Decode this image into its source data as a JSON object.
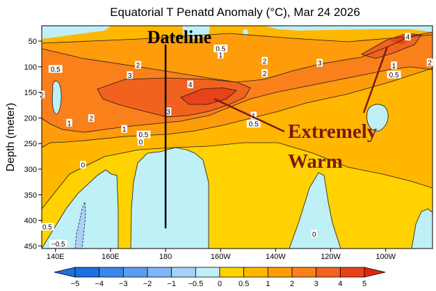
{
  "chart_data": {
    "type": "heatmap",
    "title": "Equatorial T Penatd Anomaly (°C), Mar 24 2026",
    "ylabel": "Depth (meter)",
    "xlabel": "",
    "xlim_deg_east": [
      135,
      277
    ],
    "ylim_depth_m": [
      20,
      455
    ],
    "y_inverted": true,
    "x_ticks": [
      {
        "value": 140,
        "label": "140E"
      },
      {
        "value": 160,
        "label": "160E"
      },
      {
        "value": 180,
        "label": "180"
      },
      {
        "value": 200,
        "label": "160W"
      },
      {
        "value": 220,
        "label": "140W"
      },
      {
        "value": 240,
        "label": "120W"
      },
      {
        "value": 260,
        "label": "100W"
      }
    ],
    "y_ticks": [
      50,
      100,
      150,
      200,
      250,
      300,
      350,
      400,
      450
    ],
    "colorbar": {
      "levels": [
        -5,
        -4,
        -3,
        -2,
        -1,
        -0.5,
        0,
        0.5,
        1,
        2,
        3,
        4,
        5
      ],
      "labels": [
        "−5",
        "−4",
        "−3",
        "−2",
        "−1",
        "−0.5",
        "0",
        "0.5",
        "1",
        "2",
        "3",
        "4",
        "5"
      ],
      "colors": [
        "#1f6fe0",
        "#3a86ea",
        "#5a9df0",
        "#80b6f5",
        "#a9d0f8",
        "#bfeff7",
        "#ffd200",
        "#ffb700",
        "#ff9c0b",
        "#fa801c",
        "#f2621f",
        "#e6431a"
      ],
      "extends": "both"
    },
    "contour_labels": [
      {
        "text": "0.5",
        "lon": 200,
        "depth": 65
      },
      {
        "text": "1",
        "lon": 200,
        "depth": 77
      },
      {
        "text": "2",
        "lon": 170,
        "depth": 97
      },
      {
        "text": "2",
        "lon": 216,
        "depth": 89
      },
      {
        "text": "3",
        "lon": 236,
        "depth": 93
      },
      {
        "text": "2",
        "lon": 216,
        "depth": 113
      },
      {
        "text": "4",
        "lon": 268,
        "depth": 42
      },
      {
        "text": "1",
        "lon": 263,
        "depth": 98
      },
      {
        "text": "0.5",
        "lon": 263,
        "depth": 116
      },
      {
        "text": "2",
        "lon": 276,
        "depth": 92
      },
      {
        "text": "3",
        "lon": 167,
        "depth": 117
      },
      {
        "text": "4",
        "lon": 189,
        "depth": 135
      },
      {
        "text": "3",
        "lon": 181,
        "depth": 188
      },
      {
        "text": "0.5",
        "lon": 140,
        "depth": 105
      },
      {
        "text": "2",
        "lon": 135,
        "depth": 155
      },
      {
        "text": "1",
        "lon": 145,
        "depth": 210
      },
      {
        "text": "2",
        "lon": 153,
        "depth": 201
      },
      {
        "text": "1",
        "lon": 165,
        "depth": 222
      },
      {
        "text": "0.5",
        "lon": 172,
        "depth": 233
      },
      {
        "text": "0",
        "lon": 171,
        "depth": 247
      },
      {
        "text": "1",
        "lon": 212,
        "depth": 196
      },
      {
        "text": "0.5",
        "lon": 212,
        "depth": 212
      },
      {
        "text": "0",
        "lon": 150,
        "depth": 292
      },
      {
        "text": "0.5",
        "lon": 137,
        "depth": 413
      },
      {
        "text": "−0.5",
        "lon": 141,
        "depth": 446
      },
      {
        "text": "0",
        "lon": 234,
        "depth": 427
      }
    ],
    "annotations": {
      "dateline_label": "Dateline",
      "dateline_lon": 180,
      "warm_line1": "Extremely",
      "warm_line2": "Warm"
    }
  }
}
